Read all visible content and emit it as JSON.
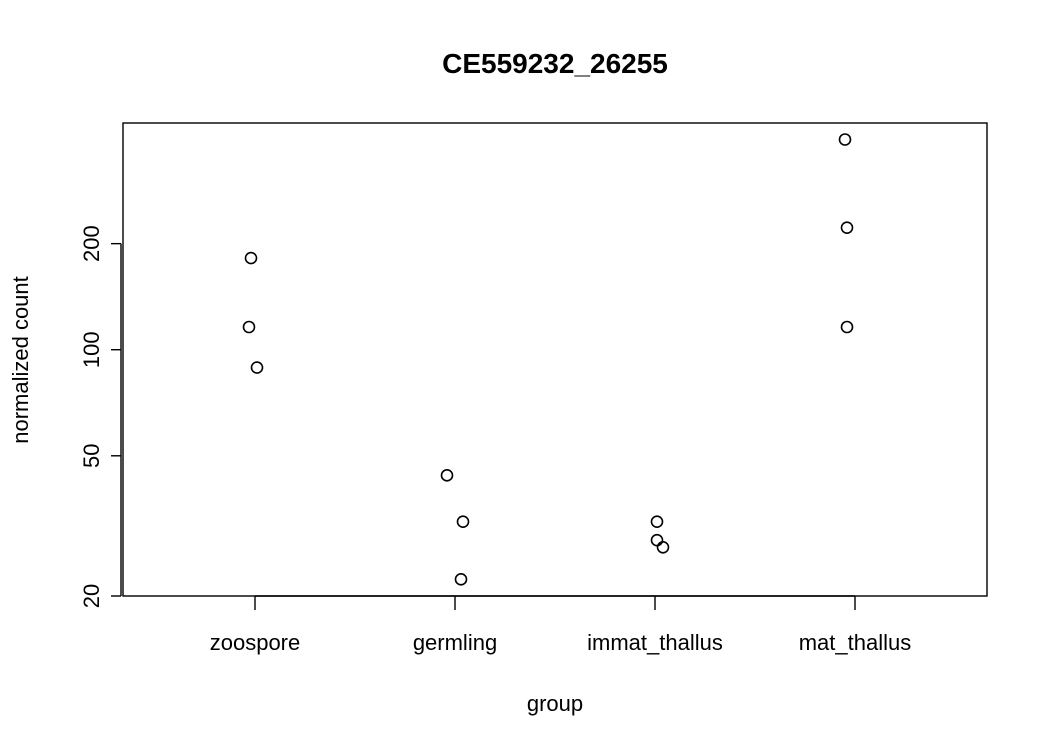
{
  "chart_data": {
    "type": "scatter",
    "title": "CE559232_26255",
    "xlabel": "group",
    "ylabel": "normalized count",
    "y_scale": "log",
    "ylim": [
      20,
      440
    ],
    "categories": [
      "zoospore",
      "germling",
      "immat_thallus",
      "mat_thallus"
    ],
    "y_ticks": [
      {
        "value": 20,
        "label": "20"
      },
      {
        "value": 50,
        "label": "50"
      },
      {
        "value": 100,
        "label": "100"
      },
      {
        "value": 200,
        "label": "200"
      }
    ],
    "points": [
      {
        "category": "zoospore",
        "jitter": -0.02,
        "y": 182
      },
      {
        "category": "zoospore",
        "jitter": -0.03,
        "y": 116
      },
      {
        "category": "zoospore",
        "jitter": 0.01,
        "y": 89
      },
      {
        "category": "germling",
        "jitter": -0.04,
        "y": 44
      },
      {
        "category": "germling",
        "jitter": 0.04,
        "y": 32.5
      },
      {
        "category": "germling",
        "jitter": 0.03,
        "y": 22.3
      },
      {
        "category": "immat_thallus",
        "jitter": 0.01,
        "y": 32.5
      },
      {
        "category": "immat_thallus",
        "jitter": 0.01,
        "y": 28.8
      },
      {
        "category": "immat_thallus",
        "jitter": 0.04,
        "y": 27.5
      },
      {
        "category": "mat_thallus",
        "jitter": -0.05,
        "y": 395
      },
      {
        "category": "mat_thallus",
        "jitter": -0.04,
        "y": 222
      },
      {
        "category": "mat_thallus",
        "jitter": -0.04,
        "y": 116
      }
    ],
    "grid": false,
    "legend": "none"
  }
}
